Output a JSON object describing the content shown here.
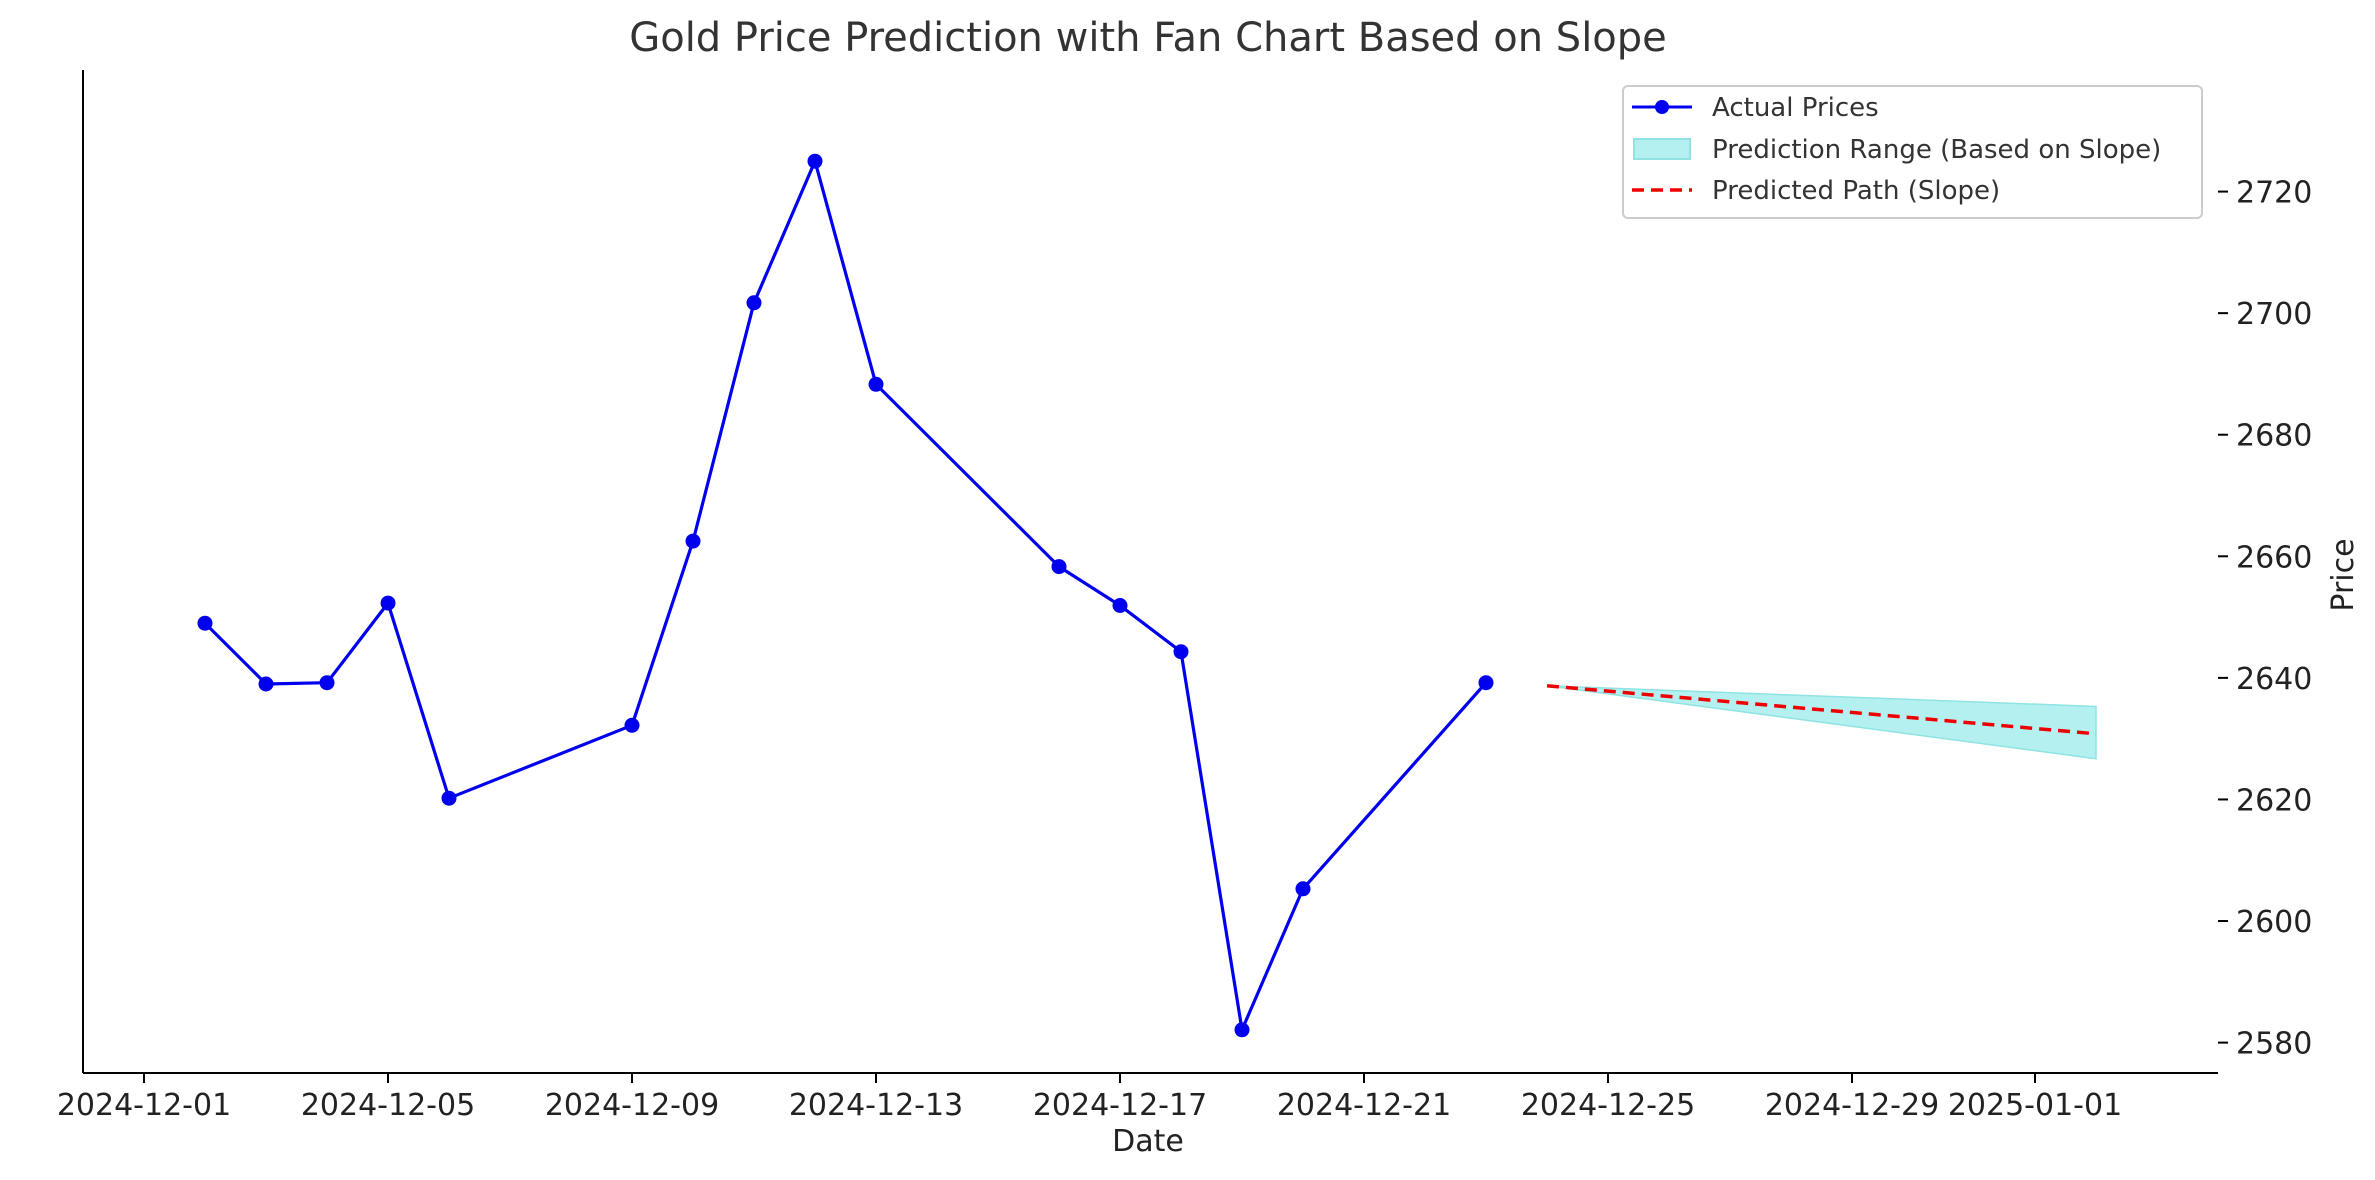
{
  "chart_data": {
    "type": "line",
    "title": "Gold Price Prediction with Fan Chart Based on Slope",
    "xlabel": "Date",
    "ylabel": "Price",
    "xlim": [
      "2024-11-30",
      "2025-01-04"
    ],
    "ylim": [
      2575,
      2740
    ],
    "x_ticks": [
      "2024-12-01",
      "2024-12-05",
      "2024-12-09",
      "2024-12-13",
      "2024-12-17",
      "2024-12-21",
      "2024-12-25",
      "2024-12-29",
      "2025-01-01"
    ],
    "y_ticks": [
      2580,
      2600,
      2620,
      2640,
      2660,
      2680,
      2700,
      2720
    ],
    "y_axis_position": "right",
    "grid": false,
    "legend_position": "top-right",
    "series": [
      {
        "name": "Actual Prices",
        "kind": "line-marker",
        "color": "#0000ee",
        "x": [
          "2024-12-02",
          "2024-12-03",
          "2024-12-04",
          "2024-12-05",
          "2024-12-06",
          "2024-12-09",
          "2024-12-10",
          "2024-12-11",
          "2024-12-12",
          "2024-12-13",
          "2024-12-16",
          "2024-12-17",
          "2024-12-18",
          "2024-12-19",
          "2024-12-20",
          "2024-12-23"
        ],
        "y": [
          2649,
          2639,
          2639.2,
          2652.3,
          2620.2,
          2632.2,
          2662.5,
          2701.7,
          2725,
          2688.3,
          2658.3,
          2651.9,
          2644.3,
          2582.1,
          2605.3,
          2639.2
        ]
      },
      {
        "name": "Prediction Range (Based on Slope)",
        "kind": "band",
        "color": "#b5f0f0",
        "edge_color": "#8fe3e3",
        "x": [
          "2024-12-24",
          "2025-01-02"
        ],
        "lower": [
          2638.7,
          2626.7
        ],
        "upper": [
          2638.7,
          2635.3
        ]
      },
      {
        "name": "Predicted Path (Slope)",
        "kind": "dashed-line",
        "color": "#ee0000",
        "x": [
          "2024-12-24",
          "2025-01-02"
        ],
        "y": [
          2638.7,
          2630.8
        ]
      }
    ]
  }
}
